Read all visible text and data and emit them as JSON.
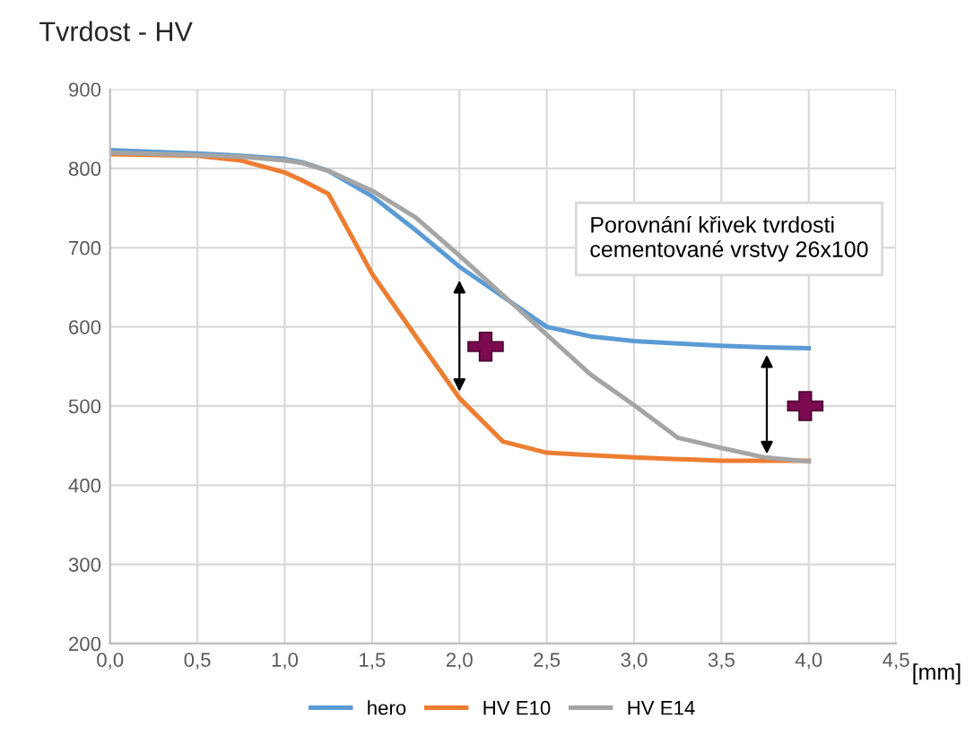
{
  "chart_data": {
    "type": "line",
    "title": "Tvrdost - HV",
    "xlabel": "[mm]",
    "x": [
      0,
      0.5,
      0.75,
      1.0,
      1.1,
      1.25,
      1.5,
      1.75,
      2.0,
      2.25,
      2.5,
      2.75,
      3.0,
      3.25,
      3.5,
      3.75,
      4.0
    ],
    "series": [
      {
        "name": "hero",
        "color": "#5b9bd5",
        "values": [
          823,
          819,
          816,
          812,
          808,
          797,
          765,
          722,
          676,
          638,
          600,
          588,
          582,
          579,
          576,
          574,
          573
        ]
      },
      {
        "name": "HV E10",
        "color": "#ed7d31",
        "values": [
          818,
          816,
          810,
          795,
          785,
          768,
          667,
          588,
          510,
          455,
          441,
          438,
          435,
          433,
          431,
          431,
          431
        ]
      },
      {
        "name": "HV E14",
        "color": "#a5a5a5",
        "values": [
          820,
          817,
          815,
          810,
          807,
          797,
          772,
          738,
          690,
          640,
          590,
          540,
          501,
          460,
          447,
          435,
          430
        ]
      }
    ],
    "xlim": [
      0,
      4.5
    ],
    "ylim": [
      200,
      900
    ],
    "xticks": [
      {
        "value": 0,
        "label": "0,0"
      },
      {
        "value": 0.5,
        "label": "0,5"
      },
      {
        "value": 1.0,
        "label": "1,0"
      },
      {
        "value": 1.5,
        "label": "1,5"
      },
      {
        "value": 2.0,
        "label": "2,0"
      },
      {
        "value": 2.5,
        "label": "2,5"
      },
      {
        "value": 3.0,
        "label": "3,0"
      },
      {
        "value": 3.5,
        "label": "3,5"
      },
      {
        "value": 4.0,
        "label": "4,0"
      },
      {
        "value": 4.5,
        "label": "4,5"
      }
    ],
    "yticks": [
      200,
      300,
      400,
      500,
      600,
      700,
      800,
      900
    ],
    "annotations": [
      "Porovnání křivek tvrdosti\ncementované vrstvy 26x100"
    ],
    "grid": true,
    "legend": "bottom",
    "marker": "none",
    "line_style": "solid"
  }
}
